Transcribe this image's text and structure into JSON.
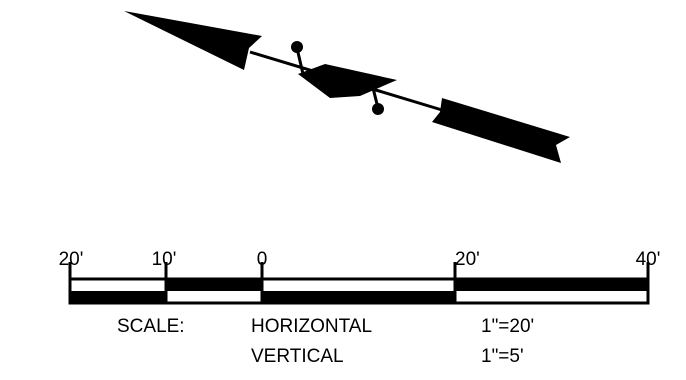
{
  "north_arrow": {
    "icon": "north-arrow-icon"
  },
  "scale_bar": {
    "tick_labels": [
      "20'",
      "10'",
      "0",
      "20'",
      "40'"
    ],
    "caption": "SCALE:",
    "horizontal": {
      "label": "HORIZONTAL",
      "ratio": "1\"=20'"
    },
    "vertical": {
      "label": "VERTICAL",
      "ratio": "1\"=5'"
    }
  },
  "colors": {
    "ink": "#000000",
    "paper": "#ffffff"
  }
}
